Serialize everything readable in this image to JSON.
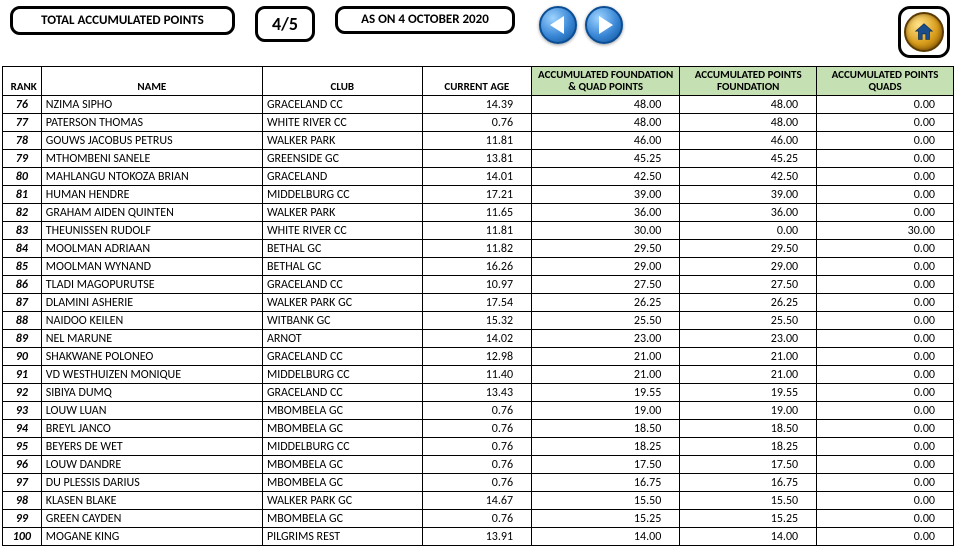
{
  "header": {
    "title": "TOTAL ACCUMULATED POINTS",
    "page": "4/5",
    "date": "AS ON 4 OCTOBER 2020"
  },
  "table": {
    "columns": {
      "rank": "RANK",
      "name": "NAME",
      "club": "CLUB",
      "age": "CURRENT AGE",
      "acc_combined": "ACCUMULATED FOUNDATION & QUAD POINTS",
      "acc_foundation": "ACCUMULATED POINTS FOUNDATION",
      "acc_quads": "ACCUMULATED POINTS QUADS"
    },
    "header_colors": {
      "white": "#ffffff",
      "green": "#c5e0b3"
    },
    "rows": [
      {
        "rank": 76,
        "name": "NZIMA SIPHO",
        "club": "GRACELAND CC",
        "age": "14.39",
        "acc": "48.00",
        "accf": "48.00",
        "accq": "0.00"
      },
      {
        "rank": 77,
        "name": "PATERSON THOMAS",
        "club": "WHITE RIVER CC",
        "age": "0.76",
        "acc": "48.00",
        "accf": "48.00",
        "accq": "0.00"
      },
      {
        "rank": 78,
        "name": "GOUWS JACOBUS PETRUS",
        "club": "WALKER PARK",
        "age": "11.81",
        "acc": "46.00",
        "accf": "46.00",
        "accq": "0.00"
      },
      {
        "rank": 79,
        "name": "MTHOMBENI SANELE",
        "club": "GREENSIDE GC",
        "age": "13.81",
        "acc": "45.25",
        "accf": "45.25",
        "accq": "0.00"
      },
      {
        "rank": 80,
        "name": "MAHLANGU NTOKOZA BRIAN",
        "club": "GRACELAND",
        "age": "14.01",
        "acc": "42.50",
        "accf": "42.50",
        "accq": "0.00"
      },
      {
        "rank": 81,
        "name": "HUMAN HENDRE",
        "club": "MIDDELBURG CC",
        "age": "17.21",
        "acc": "39.00",
        "accf": "39.00",
        "accq": "0.00"
      },
      {
        "rank": 82,
        "name": "GRAHAM AIDEN QUINTEN",
        "club": "WALKER PARK",
        "age": "11.65",
        "acc": "36.00",
        "accf": "36.00",
        "accq": "0.00"
      },
      {
        "rank": 83,
        "name": "THEUNISSEN RUDOLF",
        "club": "WHITE RIVER CC",
        "age": "11.81",
        "acc": "30.00",
        "accf": "0.00",
        "accq": "30.00"
      },
      {
        "rank": 84,
        "name": "MOOLMAN ADRIAAN",
        "club": "BETHAL GC",
        "age": "11.82",
        "acc": "29.50",
        "accf": "29.50",
        "accq": "0.00"
      },
      {
        "rank": 85,
        "name": "MOOLMAN WYNAND",
        "club": "BETHAL GC",
        "age": "16.26",
        "acc": "29.00",
        "accf": "29.00",
        "accq": "0.00"
      },
      {
        "rank": 86,
        "name": "TLADI MAGOPURUTSE",
        "club": "GRACELAND CC",
        "age": "10.97",
        "acc": "27.50",
        "accf": "27.50",
        "accq": "0.00"
      },
      {
        "rank": 87,
        "name": "DLAMINI ASHERIE",
        "club": "WALKER PARK GC",
        "age": "17.54",
        "acc": "26.25",
        "accf": "26.25",
        "accq": "0.00"
      },
      {
        "rank": 88,
        "name": "NAIDOO KEILEN",
        "club": "WITBANK GC",
        "age": "15.32",
        "acc": "25.50",
        "accf": "25.50",
        "accq": "0.00"
      },
      {
        "rank": 89,
        "name": "NEL MARUNE",
        "club": "ARNOT",
        "age": "14.02",
        "acc": "23.00",
        "accf": "23.00",
        "accq": "0.00"
      },
      {
        "rank": 90,
        "name": "SHAKWANE POLONEO",
        "club": "GRACELAND CC",
        "age": "12.98",
        "acc": "21.00",
        "accf": "21.00",
        "accq": "0.00"
      },
      {
        "rank": 91,
        "name": "VD WESTHUIZEN MONIQUE",
        "club": "MIDDELBURG CC",
        "age": "11.40",
        "acc": "21.00",
        "accf": "21.00",
        "accq": "0.00"
      },
      {
        "rank": 92,
        "name": "SIBIYA DUMQ",
        "club": "GRACELAND CC",
        "age": "13.43",
        "acc": "19.55",
        "accf": "19.55",
        "accq": "0.00"
      },
      {
        "rank": 93,
        "name": "LOUW LUAN",
        "club": "MBOMBELA GC",
        "age": "0.76",
        "acc": "19.00",
        "accf": "19.00",
        "accq": "0.00"
      },
      {
        "rank": 94,
        "name": "BREYL JANCO",
        "club": "MBOMBELA GC",
        "age": "0.76",
        "acc": "18.50",
        "accf": "18.50",
        "accq": "0.00"
      },
      {
        "rank": 95,
        "name": "BEYERS DE WET",
        "club": "MIDDELBURG CC",
        "age": "0.76",
        "acc": "18.25",
        "accf": "18.25",
        "accq": "0.00"
      },
      {
        "rank": 96,
        "name": "LOUW DANDRE",
        "club": "MBOMBELA GC",
        "age": "0.76",
        "acc": "17.50",
        "accf": "17.50",
        "accq": "0.00"
      },
      {
        "rank": 97,
        "name": "DU PLESSIS DARIUS",
        "club": "MBOMBELA GC",
        "age": "0.76",
        "acc": "16.75",
        "accf": "16.75",
        "accq": "0.00"
      },
      {
        "rank": 98,
        "name": "KLASEN BLAKE",
        "club": "WALKER PARK GC",
        "age": "14.67",
        "acc": "15.50",
        "accf": "15.50",
        "accq": "0.00"
      },
      {
        "rank": 99,
        "name": "GREEN CAYDEN",
        "club": "MBOMBELA GC",
        "age": "0.76",
        "acc": "15.25",
        "accf": "15.25",
        "accq": "0.00"
      },
      {
        "rank": 100,
        "name": "MOGANE KING",
        "club": "PILGRIMS REST",
        "age": "13.91",
        "acc": "14.00",
        "accf": "14.00",
        "accq": "0.00"
      }
    ]
  }
}
